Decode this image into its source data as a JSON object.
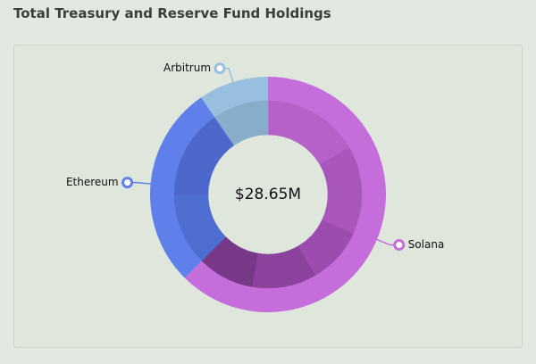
{
  "chart_data": {
    "type": "donut",
    "title": "Total Treasury and Reserve Fund Holdings",
    "center_label": "$28.65M",
    "series": [
      {
        "name": "Solana",
        "color": "#c56ddb",
        "value": 17.9,
        "parts": [
          4.77,
          4.38,
          2.78,
          3.18,
          2.79
        ],
        "part_colors": [
          "#b661c9",
          "#a956bd",
          "#9c4caf",
          "#8a429d",
          "#763887"
        ]
      },
      {
        "name": "Ethereum",
        "color": "#5f80ea",
        "value": 8.0,
        "parts": [
          3.56,
          4.44
        ],
        "part_colors": [
          "#4e6ed2",
          "#4d68cc"
        ]
      },
      {
        "name": "Arbitrum",
        "color": "#98bfe0",
        "value": 2.75,
        "parts": [
          2.75
        ],
        "part_colors": [
          "#87adca"
        ]
      }
    ]
  }
}
